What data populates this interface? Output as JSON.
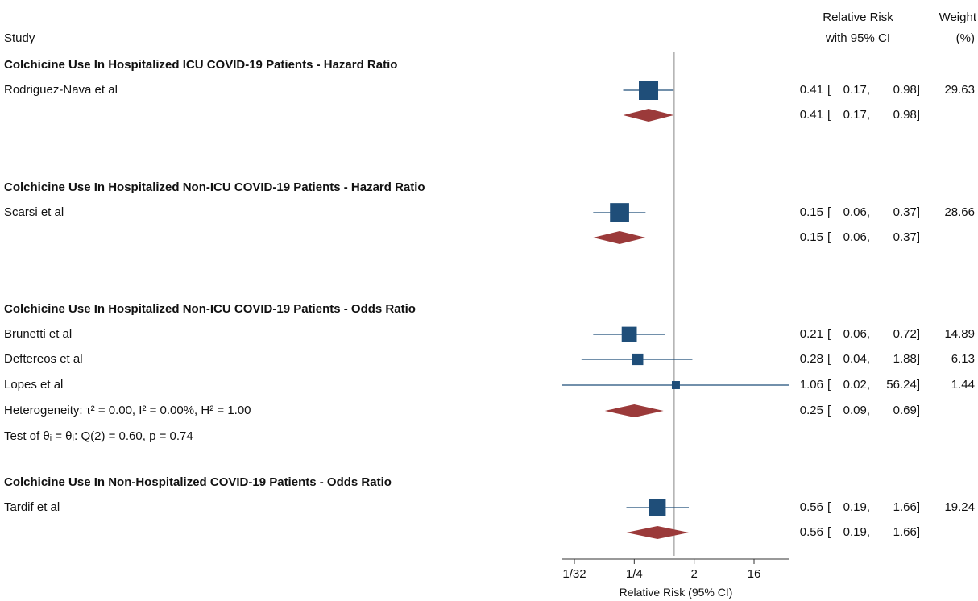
{
  "header": {
    "study": "Study",
    "rr_line1": "Relative Risk",
    "rr_line2": "with 95% CI",
    "weight_line1": "Weight",
    "weight_line2": "(%)"
  },
  "groups": [
    {
      "title": "Colchicine Use In Hospitalized ICU COVID-19 Patients - Hazard Ratio",
      "studies": [
        {
          "name": "Rodriguez-Nava et al",
          "est": "0.41",
          "lo": "0.17,",
          "hi": "0.98]",
          "weight": "29.63"
        }
      ],
      "pooled": {
        "est": "0.41",
        "lo": "0.17,",
        "hi": "0.98]"
      }
    },
    {
      "title": "Colchicine Use In Hospitalized Non-ICU COVID-19 Patients - Hazard Ratio",
      "studies": [
        {
          "name": "Scarsi et al",
          "est": "0.15",
          "lo": "0.06,",
          "hi": "0.37]",
          "weight": "28.66"
        }
      ],
      "pooled": {
        "est": "0.15",
        "lo": "0.06,",
        "hi": "0.37]"
      }
    },
    {
      "title": "Colchicine Use In Hospitalized Non-ICU COVID-19 Patients - Odds Ratio",
      "studies": [
        {
          "name": "Brunetti et al",
          "est": "0.21",
          "lo": "0.06,",
          "hi": "0.72]",
          "weight": "14.89"
        },
        {
          "name": "Deftereos et al",
          "est": "0.28",
          "lo": "0.04,",
          "hi": "1.88]",
          "weight": "6.13"
        },
        {
          "name": "Lopes et al",
          "est": "1.06",
          "lo": "0.02,",
          "hi": "56.24]",
          "weight": "1.44"
        }
      ],
      "heterogeneity": "Heterogeneity: τ² = 0.00, I² = 0.00%, H² = 1.00",
      "test": "Test of θᵢ = θⱼ: Q(2) = 0.60, p = 0.74",
      "pooled": {
        "est": "0.25",
        "lo": "0.09,",
        "hi": "0.69]"
      }
    },
    {
      "title": "Colchicine Use In Non-Hospitalized COVID-19 Patients - Odds Ratio",
      "studies": [
        {
          "name": "Tardif et al",
          "est": "0.56",
          "lo": "0.19,",
          "hi": "1.66]",
          "weight": "19.24"
        }
      ],
      "pooled": {
        "est": "0.56",
        "lo": "0.19,",
        "hi": "1.66]"
      }
    }
  ],
  "colors": {
    "square": "#1f4e79",
    "diamond": "#9b3a3a",
    "line": "#1f4e79",
    "refline": "#888888"
  },
  "chart_data": {
    "type": "forest",
    "xlabel": "Relative Risk (95% CI)",
    "xscale": "log2",
    "xticks": [
      "1/32",
      "1/4",
      "2",
      "16"
    ],
    "tick_values": [
      0.03125,
      0.25,
      2,
      16
    ],
    "reference": 1,
    "xlim": [
      0.03125,
      58
    ],
    "rows": [
      {
        "label": "Rodriguez-Nava et al",
        "kind": "study",
        "est": 0.41,
        "lo": 0.17,
        "hi": 0.98,
        "weight": 29.63
      },
      {
        "label": "Colchicine Use In Hospitalized ICU COVID-19 Patients - Hazard Ratio",
        "kind": "pooled",
        "est": 0.41,
        "lo": 0.17,
        "hi": 0.98
      },
      {
        "label": "Scarsi et al",
        "kind": "study",
        "est": 0.15,
        "lo": 0.06,
        "hi": 0.37,
        "weight": 28.66
      },
      {
        "label": "Colchicine Use In Hospitalized Non-ICU COVID-19 Patients - Hazard Ratio",
        "kind": "pooled",
        "est": 0.15,
        "lo": 0.06,
        "hi": 0.37
      },
      {
        "label": "Brunetti et al",
        "kind": "study",
        "est": 0.21,
        "lo": 0.06,
        "hi": 0.72,
        "weight": 14.89
      },
      {
        "label": "Deftereos et al",
        "kind": "study",
        "est": 0.28,
        "lo": 0.04,
        "hi": 1.88,
        "weight": 6.13
      },
      {
        "label": "Lopes et al",
        "kind": "study",
        "est": 1.06,
        "lo": 0.02,
        "hi": 56.24,
        "weight": 1.44
      },
      {
        "label": "Colchicine Use In Hospitalized Non-ICU COVID-19 Patients - Odds Ratio",
        "kind": "pooled",
        "est": 0.25,
        "lo": 0.09,
        "hi": 0.69
      },
      {
        "label": "Tardif et al",
        "kind": "study",
        "est": 0.56,
        "lo": 0.19,
        "hi": 1.66,
        "weight": 19.24
      },
      {
        "label": "Colchicine Use In Non-Hospitalized COVID-19 Patients - Odds Ratio",
        "kind": "pooled",
        "est": 0.56,
        "lo": 0.19,
        "hi": 1.66
      }
    ]
  }
}
